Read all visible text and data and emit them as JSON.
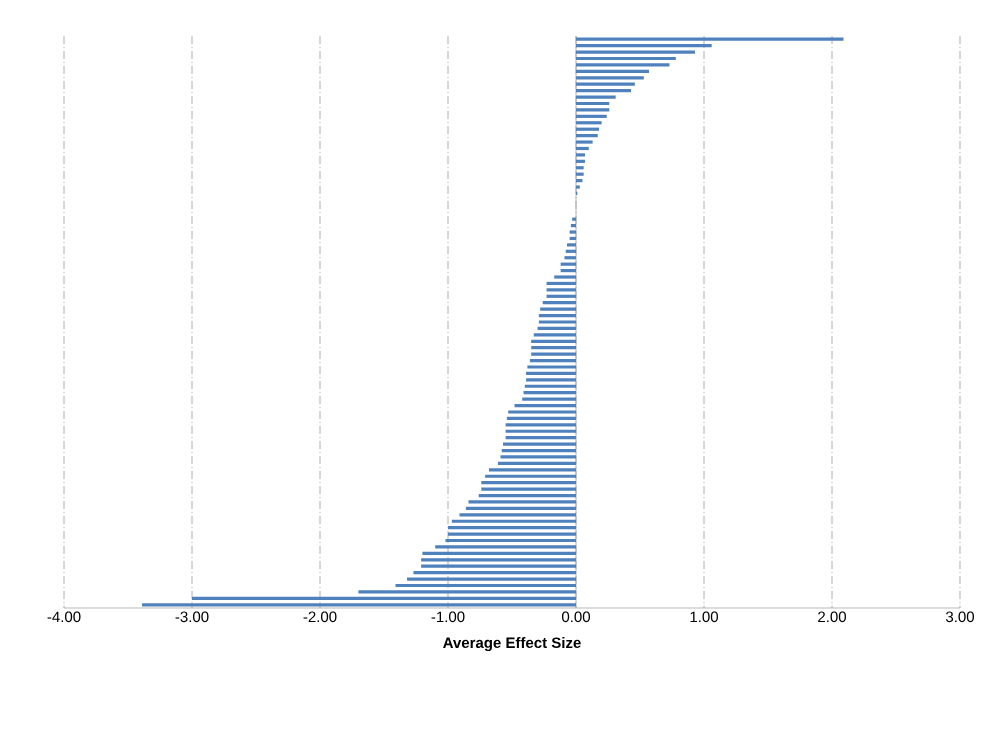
{
  "chart_data": {
    "type": "bar",
    "orientation": "horizontal",
    "xlabel": "Average Effect Size",
    "categories": [
      null,
      null,
      null,
      null,
      null,
      null,
      null,
      null,
      null,
      null,
      null,
      null,
      null,
      null,
      null,
      null,
      null,
      null,
      null,
      null,
      null,
      null,
      null,
      null,
      null,
      null,
      null,
      null,
      null,
      null,
      null,
      null,
      null,
      null,
      null,
      null,
      null,
      null,
      null,
      null,
      null,
      null,
      null,
      null,
      null,
      null,
      null,
      null,
      null,
      null,
      null,
      null,
      null,
      null,
      null,
      null,
      null,
      null,
      null,
      null,
      null,
      null,
      null,
      null,
      null,
      null,
      null,
      null,
      null,
      null,
      null,
      null,
      null,
      null,
      null,
      null,
      null,
      null,
      null,
      null,
      null,
      null,
      null,
      null,
      null,
      null,
      null,
      null,
      null
    ],
    "values": [
      2.09,
      1.06,
      0.93,
      0.78,
      0.73,
      0.57,
      0.53,
      0.46,
      0.43,
      0.31,
      0.26,
      0.26,
      0.24,
      0.2,
      0.18,
      0.17,
      0.13,
      0.1,
      0.07,
      0.07,
      0.06,
      0.06,
      0.05,
      0.03,
      0.01,
      0,
      0,
      0,
      -0.03,
      -0.04,
      -0.05,
      -0.05,
      -0.07,
      -0.08,
      -0.09,
      -0.12,
      -0.12,
      -0.17,
      -0.23,
      -0.23,
      -0.23,
      -0.26,
      -0.28,
      -0.29,
      -0.29,
      -0.3,
      -0.33,
      -0.35,
      -0.35,
      -0.35,
      -0.36,
      -0.38,
      -0.39,
      -0.39,
      -0.4,
      -0.41,
      -0.42,
      -0.48,
      -0.53,
      -0.54,
      -0.55,
      -0.55,
      -0.55,
      -0.57,
      -0.58,
      -0.59,
      -0.61,
      -0.68,
      -0.71,
      -0.74,
      -0.74,
      -0.76,
      -0.84,
      -0.86,
      -0.91,
      -0.97,
      -1.0,
      -1.0,
      -1.02,
      -1.1,
      -1.2,
      -1.21,
      -1.21,
      -1.27,
      -1.32,
      -1.41,
      -1.7,
      -3.0,
      -3.39
    ],
    "color": "#4f81bd",
    "xlim": [
      -4,
      3
    ],
    "xticks": [
      {
        "value": -4,
        "label": "-4.00"
      },
      {
        "value": -3,
        "label": "-3.00"
      },
      {
        "value": -2,
        "label": "-2.00"
      },
      {
        "value": -1,
        "label": "-1.00"
      },
      {
        "value": 0,
        "label": "0.00"
      },
      {
        "value": 1,
        "label": "1.00"
      },
      {
        "value": 2,
        "label": "2.00"
      },
      {
        "value": 3,
        "label": "3.00"
      }
    ],
    "grid": "x",
    "tick_labels": "x"
  }
}
